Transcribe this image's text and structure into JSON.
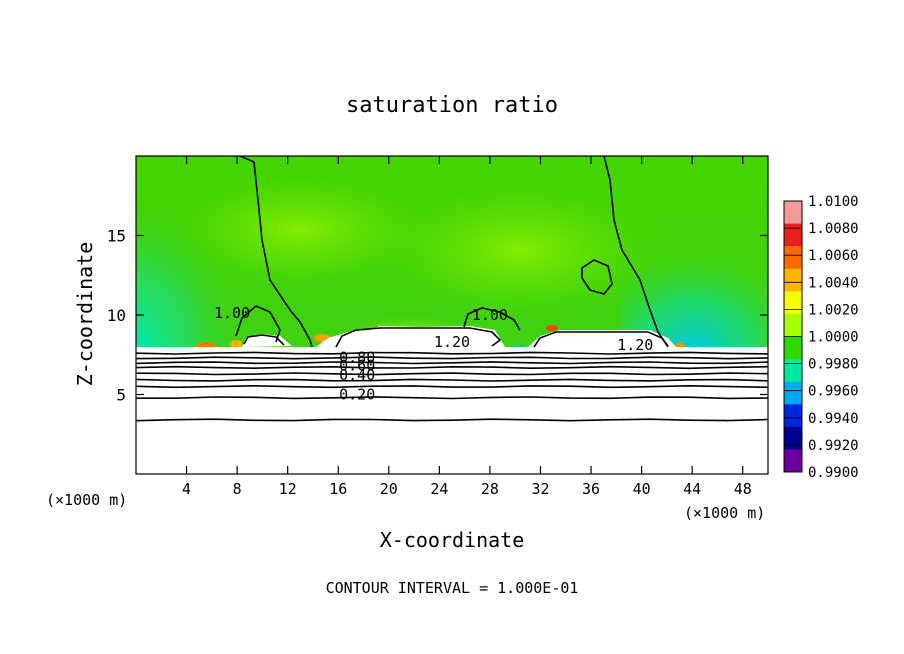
{
  "chart_data": {
    "type": "heatmap",
    "title": "saturation ratio",
    "xlabel": "X-coordinate",
    "ylabel": "Z-coordinate",
    "x_unit_left": "(×1000 m)",
    "x_unit_right": "(×1000 m)",
    "footer": "CONTOUR INTERVAL = 1.000E-01",
    "xlim": [
      0,
      50
    ],
    "ylim": [
      0,
      20
    ],
    "x_ticks": [
      "4",
      "8",
      "12",
      "16",
      "20",
      "24",
      "28",
      "32",
      "36",
      "40",
      "44",
      "48"
    ],
    "x_tick_values": [
      4,
      8,
      12,
      16,
      20,
      24,
      28,
      32,
      36,
      40,
      44,
      48
    ],
    "y_ticks": [
      "5",
      "10",
      "15"
    ],
    "y_tick_values": [
      5,
      10,
      15
    ],
    "colorbar": {
      "labels": [
        "1.0100",
        "1.0080",
        "1.0060",
        "1.0040",
        "1.0020",
        "1.0000",
        "0.9980",
        "0.9960",
        "0.9940",
        "0.9920",
        "0.9900"
      ],
      "colors": [
        "#f29a9a",
        "#e82020",
        "#ff6a00",
        "#ffb400",
        "#f5ff00",
        "#a8ff00",
        "#30d600",
        "#00e8a0",
        "#00a8f0",
        "#0028d8",
        "#000090",
        "#6a00a0"
      ]
    },
    "contour_labels": [
      {
        "text": "1.00",
        "x": 7.6,
        "y": 9.8
      },
      {
        "text": "1.00",
        "x": 28.0,
        "y": 9.7
      },
      {
        "text": "1.20",
        "x": 25.0,
        "y": 8.0
      },
      {
        "text": "1.20",
        "x": 39.5,
        "y": 7.8
      },
      {
        "text": "0.80",
        "x": 17.5,
        "y": 7.0
      },
      {
        "text": "0.60",
        "x": 17.5,
        "y": 6.5
      },
      {
        "text": "0.40",
        "x": 17.5,
        "y": 5.9
      },
      {
        "text": "0.20",
        "x": 17.5,
        "y": 4.7
      }
    ],
    "layer_levels": [
      7.6,
      7.3,
      7.0,
      6.7,
      6.3,
      5.9,
      5.5,
      4.8,
      3.4
    ]
  }
}
